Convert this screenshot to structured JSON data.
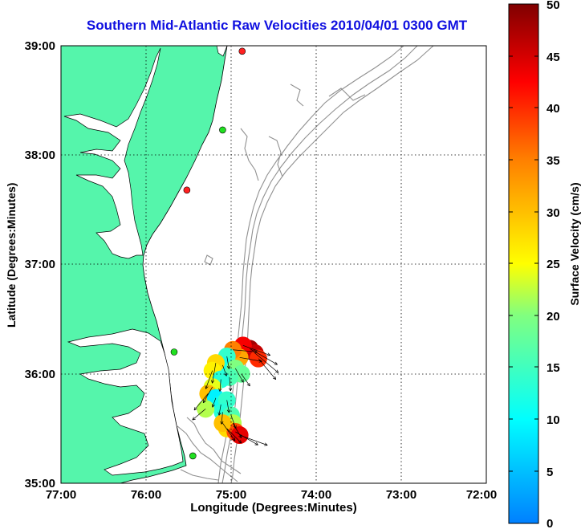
{
  "title": "Southern Mid-Atlantic Raw Velocities 2010/04/01 0300 GMT",
  "xlabel": "Longitude (Degrees:Minutes)",
  "ylabel": "Latitude (Degrees:Minutes)",
  "colorbar": {
    "label": "Surface Velocity (cm/s)",
    "min": 0,
    "max": 50,
    "ticks": [
      "0",
      "5",
      "10",
      "15",
      "20",
      "25",
      "30",
      "35",
      "40",
      "45",
      "50"
    ],
    "colormap": "jet"
  },
  "map": {
    "lon_range": [
      -77,
      -72
    ],
    "lat_range": [
      35,
      39
    ],
    "x_ticks": [
      "77:00",
      "76:00",
      "75:00",
      "74:00",
      "73:00",
      "72:00"
    ],
    "y_ticks": [
      "35:00",
      "36:00",
      "37:00",
      "38:00",
      "39:00"
    ],
    "grid": true,
    "land_color": "#55f5ab",
    "bathymetry_color": "#909090"
  },
  "chart_data": {
    "type": "scatter",
    "title": "Southern Mid-Atlantic Raw Velocities 2010/04/01 0300 GMT",
    "xlabel": "Longitude (Degrees:Minutes)",
    "ylabel": "Latitude (Degrees:Minutes)",
    "xlim": [
      -77,
      -72
    ],
    "ylim": [
      35,
      39
    ],
    "grid": true,
    "stations": [
      {
        "lon": -74.87,
        "lat": 38.95,
        "status": "red"
      },
      {
        "lon": -75.1,
        "lat": 38.23,
        "status": "green"
      },
      {
        "lon": -75.52,
        "lat": 37.68,
        "status": "red"
      },
      {
        "lon": -75.67,
        "lat": 36.2,
        "status": "green"
      },
      {
        "lon": -75.45,
        "lat": 35.25,
        "status": "green"
      }
    ],
    "velocities": [
      {
        "lon": -74.78,
        "lat": 36.23,
        "speed": 48,
        "dir": 120
      },
      {
        "lon": -74.72,
        "lat": 36.19,
        "speed": 46,
        "dir": 130
      },
      {
        "lon": -74.86,
        "lat": 36.26,
        "speed": 43,
        "dir": 110
      },
      {
        "lon": -74.68,
        "lat": 36.14,
        "speed": 40,
        "dir": 140
      },
      {
        "lon": -74.9,
        "lat": 36.15,
        "speed": 32,
        "dir": 100
      },
      {
        "lon": -74.98,
        "lat": 36.22,
        "speed": 35,
        "dir": 95
      },
      {
        "lon": -75.05,
        "lat": 36.16,
        "speed": 14,
        "dir": 170
      },
      {
        "lon": -75.1,
        "lat": 36.08,
        "speed": 12,
        "dir": 160
      },
      {
        "lon": -75.18,
        "lat": 36.1,
        "speed": 28,
        "dir": 190
      },
      {
        "lon": -75.22,
        "lat": 36.03,
        "speed": 26,
        "dir": 200
      },
      {
        "lon": -74.95,
        "lat": 36.05,
        "speed": 20,
        "dir": 150
      },
      {
        "lon": -74.88,
        "lat": 36.0,
        "speed": 18,
        "dir": 145
      },
      {
        "lon": -75.02,
        "lat": 35.97,
        "speed": 16,
        "dir": 175
      },
      {
        "lon": -75.12,
        "lat": 35.95,
        "speed": 13,
        "dir": 185
      },
      {
        "lon": -75.22,
        "lat": 35.88,
        "speed": 24,
        "dir": 210
      },
      {
        "lon": -75.27,
        "lat": 35.82,
        "speed": 30,
        "dir": 220
      },
      {
        "lon": -75.18,
        "lat": 35.78,
        "speed": 9,
        "dir": 200
      },
      {
        "lon": -75.12,
        "lat": 35.72,
        "speed": 11,
        "dir": 190
      },
      {
        "lon": -75.05,
        "lat": 35.76,
        "speed": 14,
        "dir": 170
      },
      {
        "lon": -75.1,
        "lat": 35.65,
        "speed": 13,
        "dir": 185
      },
      {
        "lon": -75.3,
        "lat": 35.68,
        "speed": 22,
        "dir": 230
      },
      {
        "lon": -75.0,
        "lat": 35.62,
        "speed": 16,
        "dir": 160
      },
      {
        "lon": -74.98,
        "lat": 35.55,
        "speed": 22,
        "dir": 150
      },
      {
        "lon": -75.05,
        "lat": 35.5,
        "speed": 28,
        "dir": 135
      },
      {
        "lon": -74.95,
        "lat": 35.47,
        "speed": 38,
        "dir": 120
      },
      {
        "lon": -74.9,
        "lat": 35.44,
        "speed": 44,
        "dir": 110
      },
      {
        "lon": -75.1,
        "lat": 35.55,
        "speed": 30,
        "dir": 145
      }
    ]
  }
}
